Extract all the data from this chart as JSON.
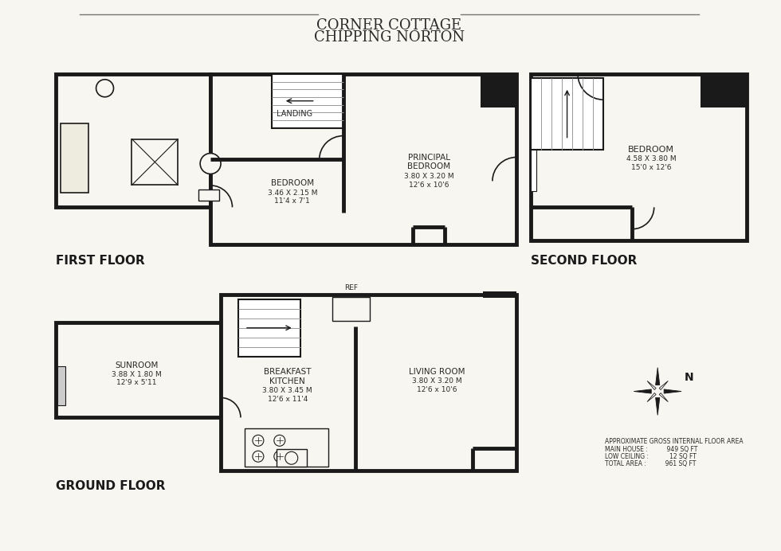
{
  "title_line1": "CORNER COTTAGE",
  "title_line2": "CHIPPING NORTON",
  "bg_color": "#f7f6f0",
  "wall_color": "#1a1a1a",
  "wall_lw": 3.5,
  "labels": {
    "first_floor": "FIRST FLOOR",
    "second_floor": "SECOND FLOOR",
    "ground_floor": "GROUND FLOOR"
  },
  "room_labels": {
    "landing": "LANDING",
    "bedroom1": [
      "BEDROOM",
      "3.46 X 2.15 M",
      "11'4 x 7'1"
    ],
    "principal_bedroom": [
      "PRINCIPAL",
      "BEDROOM",
      "3.80 X 3.20 M",
      "12'6 x 10'6"
    ],
    "bedroom2": [
      "BEDROOM",
      "4.58 X 3.80 M",
      "15'0 x 12'6"
    ],
    "sunroom": [
      "SUNROOM",
      "3.88 X 1.80 M",
      "12'9 x 5'11"
    ],
    "breakfast_kitchen": [
      "BREAKFAST",
      "KITCHEN",
      "3.80 X 3.45 M",
      "12'6 x 11'4"
    ],
    "living_room": [
      "LIVING ROOM",
      "3.80 X 3.20 M",
      "12'6 x 10'6"
    ],
    "ref": "REF"
  },
  "footer": {
    "line1": "APPROXIMATE GROSS INTERNAL FLOOR AREA",
    "line2": "MAIN HOUSE :          949 SQ FT",
    "line3": "LOW CEILING :           12 SQ FT",
    "line4": "TOTAL AREA :          961 SQ FT"
  }
}
